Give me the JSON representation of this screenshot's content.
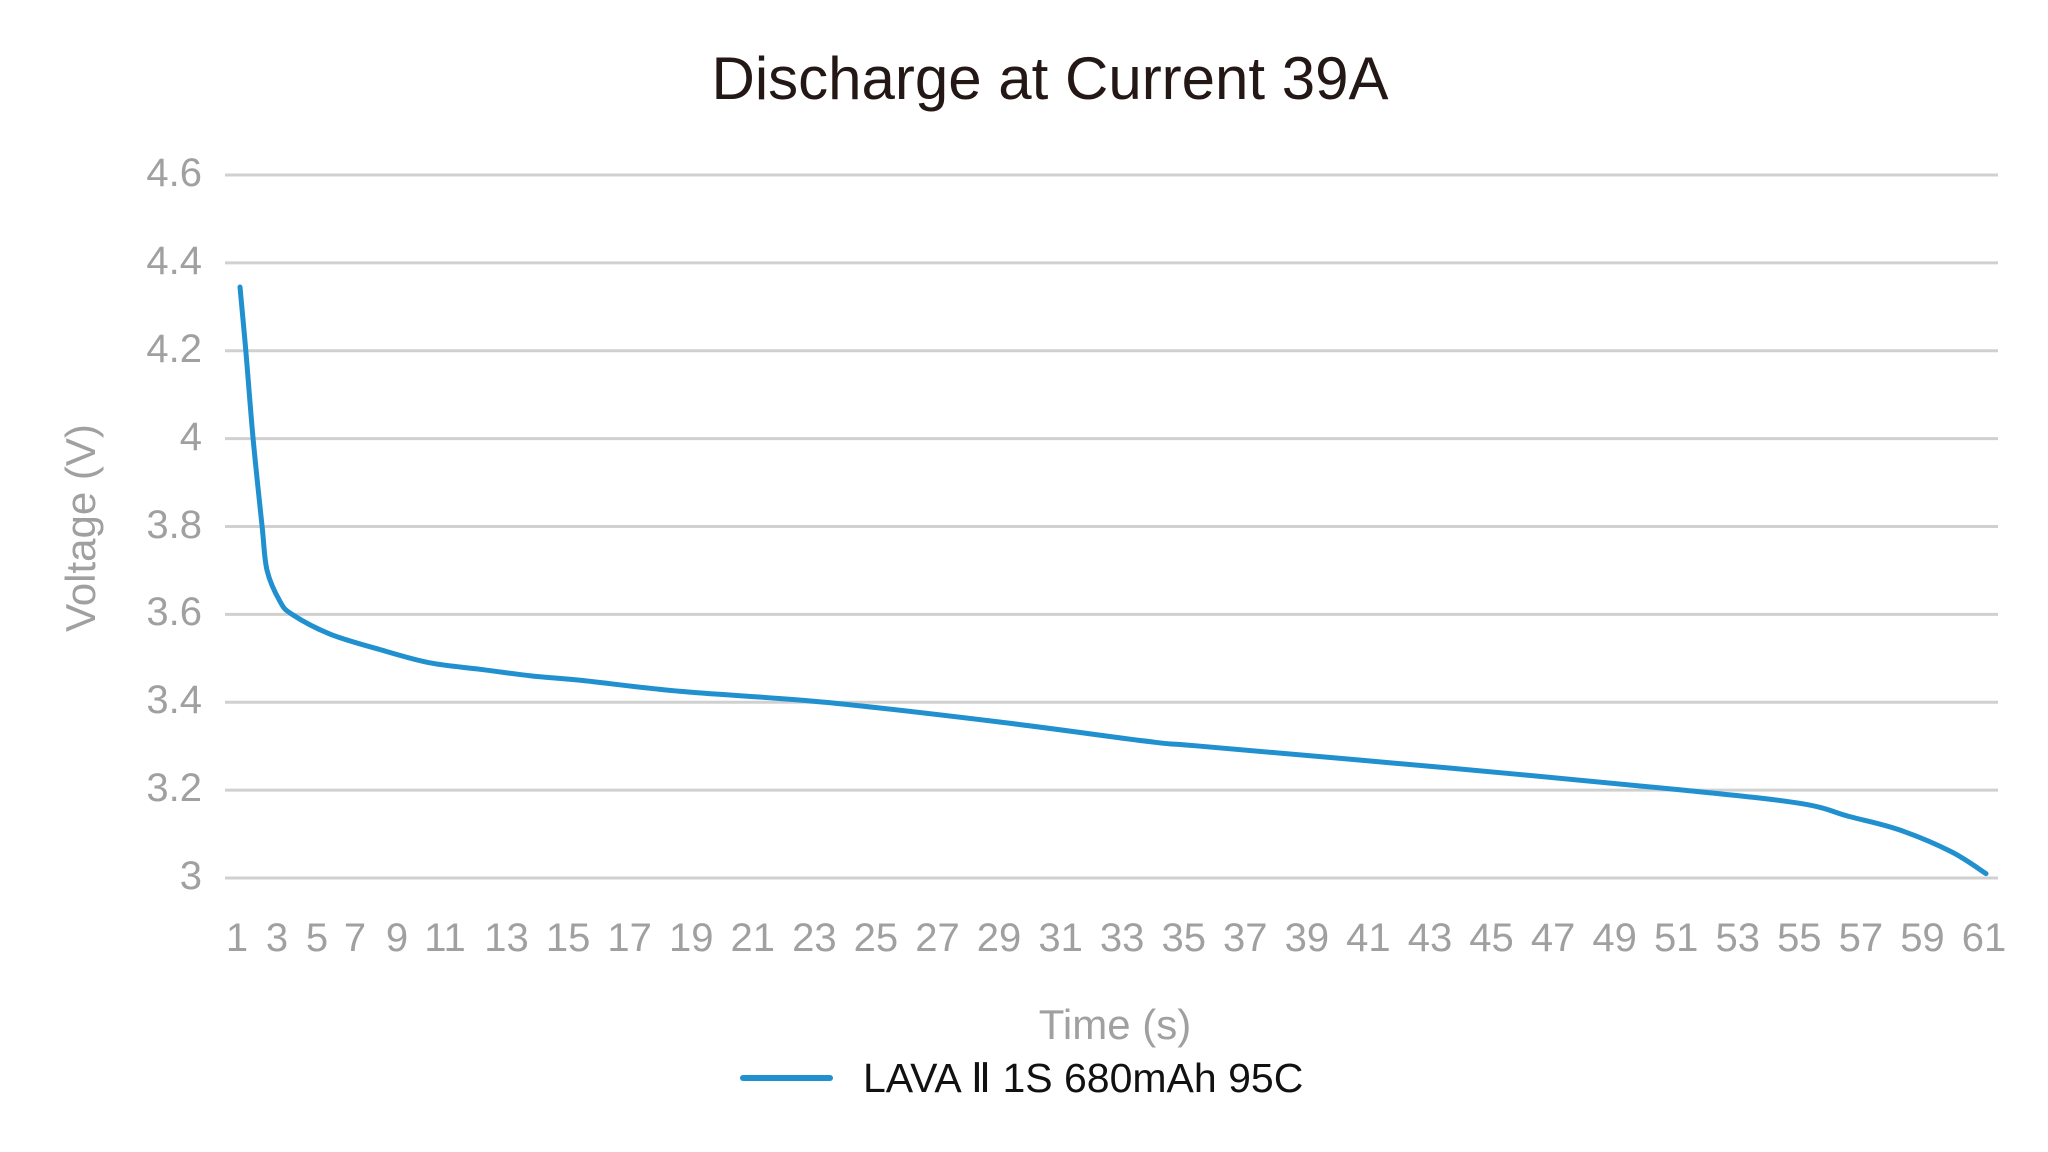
{
  "chart": {
    "title": "Discharge at Current 39A",
    "y_axis_title": "Voltage (V)",
    "x_axis_title": "Time (s)",
    "legend": [
      {
        "label": "LAVA Ⅱ 1S 680mAh 95C",
        "color": "#2190cf"
      }
    ]
  },
  "style": {
    "line_color": "#2190cf",
    "grid_color": "#d0d0d0",
    "tick_color": "#a0a0a0",
    "title_color": "#231815"
  },
  "chart_data": {
    "type": "line",
    "title": "Discharge at Current 39A",
    "xlabel": "Time (s)",
    "ylabel": "Voltage (V)",
    "ylim": [
      3.0,
      4.6
    ],
    "yticks": [
      "4.6",
      "4.4",
      "4.2",
      "4",
      "3.8",
      "3.6",
      "3.4",
      "3.2",
      "3"
    ],
    "xticks": [
      "1",
      "3",
      "5",
      "7",
      "9",
      "11",
      "13",
      "15",
      "17",
      "19",
      "21",
      "23",
      "25",
      "27",
      "29",
      "31",
      "33",
      "35",
      "37",
      "39",
      "41",
      "43",
      "45",
      "47",
      "49",
      "51",
      "53",
      "55",
      "57",
      "59",
      "61"
    ],
    "grid": true,
    "legend_position": "bottom",
    "series": [
      {
        "name": "LAVA Ⅱ 1S 680mAh 95C",
        "x": [
          1.0,
          1.2,
          1.45,
          1.76,
          1.93,
          2.37,
          2.79,
          4.1,
          5.8,
          7.5,
          9.25,
          11.0,
          12.7,
          16.1,
          21.1,
          27.1,
          32.3,
          34.0,
          42.6,
          50.6,
          54.6,
          56.3,
          58.0,
          59.8,
          61.0
        ],
        "values": [
          4.345,
          4.2,
          4.0,
          3.8,
          3.7,
          3.63,
          3.6,
          3.555,
          3.52,
          3.49,
          3.475,
          3.46,
          3.45,
          3.425,
          3.4,
          3.355,
          3.31,
          3.3,
          3.25,
          3.2,
          3.17,
          3.14,
          3.11,
          3.06,
          3.01
        ]
      }
    ]
  }
}
